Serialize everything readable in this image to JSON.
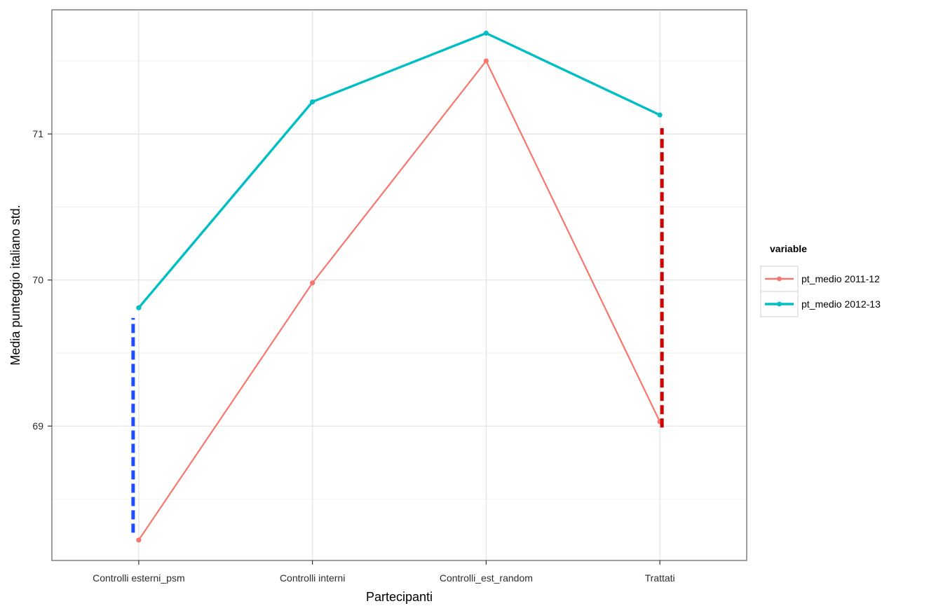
{
  "chart_data": {
    "type": "line",
    "title": "",
    "xlabel": "Partecipanti",
    "ylabel": "Media punteggio italiano std.",
    "categories": [
      "Controlli esterni_psm",
      "Controlli interni",
      "Controlli_est_random",
      "Trattati"
    ],
    "ylim": [
      68.08,
      71.85
    ],
    "yticks": [
      69,
      70,
      71
    ],
    "grid": true,
    "legend": {
      "title": "variable",
      "position": "right"
    },
    "series": [
      {
        "name": "pt_medio 2011-12",
        "color": "#F8766D",
        "values": [
          68.22,
          69.98,
          71.5,
          69.03
        ]
      },
      {
        "name": "pt_medio 2012-13",
        "color": "#00BFC4",
        "values": [
          69.81,
          71.22,
          71.69,
          71.13
        ]
      }
    ],
    "annotations": [
      {
        "type": "dashed-segment",
        "color": "#1E4FFF",
        "category": "Controlli esterni_psm",
        "from": 68.27,
        "to": 69.74,
        "side": "left"
      },
      {
        "type": "dashed-segment",
        "color": "#CC0000",
        "category": "Trattati",
        "from": 68.99,
        "to": 71.04,
        "side": "right"
      }
    ]
  }
}
